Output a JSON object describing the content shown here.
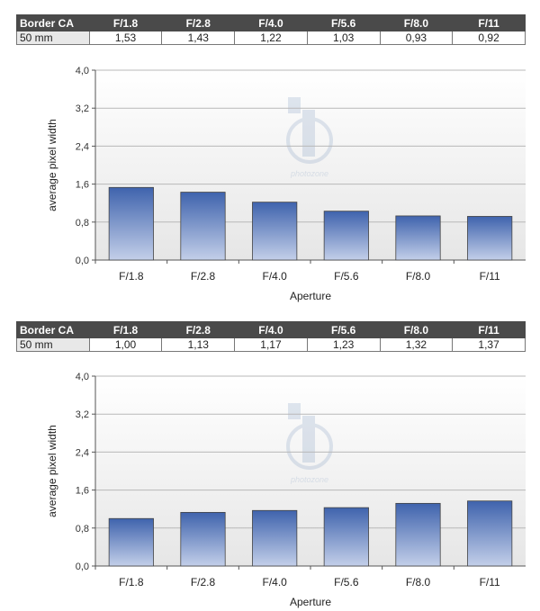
{
  "tables": [
    {
      "headers": [
        "Border CA",
        "F/1.8",
        "F/2.8",
        "F/4.0",
        "F/5.6",
        "F/8.0",
        "F/11"
      ],
      "row": [
        "50 mm",
        "1,53",
        "1,43",
        "1,22",
        "1,03",
        "0,93",
        "0,92"
      ]
    },
    {
      "headers": [
        "Border CA",
        "F/1.8",
        "F/2.8",
        "F/4.0",
        "F/5.6",
        "F/8.0",
        "F/11"
      ],
      "row": [
        "50 mm",
        "1,00",
        "1,13",
        "1,17",
        "1,23",
        "1,32",
        "1,37"
      ]
    }
  ],
  "watermark": "photozone",
  "chart_data": [
    {
      "type": "bar",
      "categories": [
        "F/1.8",
        "F/2.8",
        "F/4.0",
        "F/5.6",
        "F/8.0",
        "F/11"
      ],
      "values": [
        1.53,
        1.43,
        1.22,
        1.03,
        0.93,
        0.92
      ],
      "xlabel": "Aperture",
      "ylabel": "average pixel width",
      "ylim": [
        0,
        4
      ],
      "yticks": [
        "0,0",
        "0,8",
        "1,6",
        "2,4",
        "3,2",
        "4,0"
      ],
      "grid": true,
      "bar_color": "#3f63ad"
    },
    {
      "type": "bar",
      "categories": [
        "F/1.8",
        "F/2.8",
        "F/4.0",
        "F/5.6",
        "F/8.0",
        "F/11"
      ],
      "values": [
        1.0,
        1.13,
        1.17,
        1.23,
        1.32,
        1.37
      ],
      "xlabel": "Aperture",
      "ylabel": "average pixel width",
      "ylim": [
        0,
        4
      ],
      "yticks": [
        "0,0",
        "0,8",
        "1,6",
        "2,4",
        "3,2",
        "4,0"
      ],
      "grid": true,
      "bar_color": "#3f63ad"
    }
  ]
}
